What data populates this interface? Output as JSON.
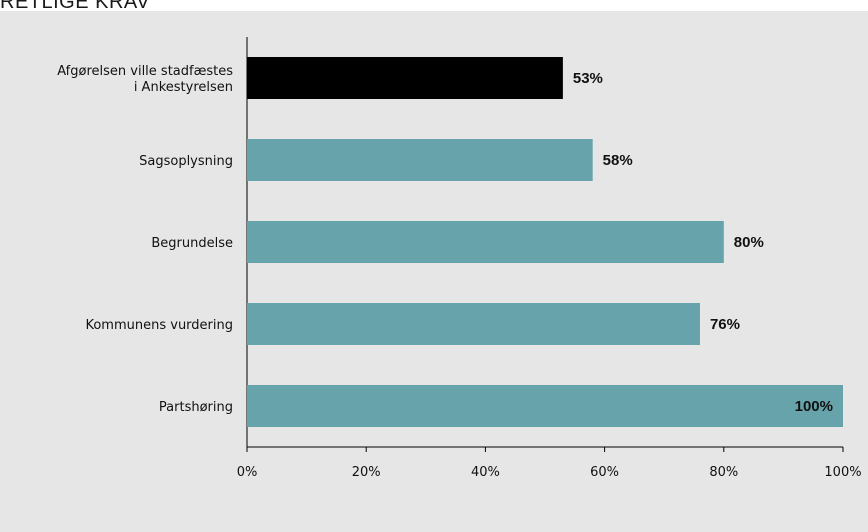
{
  "page": {
    "title_fragment": "RETLIGE KRAV"
  },
  "chart_data": {
    "type": "bar",
    "orientation": "horizontal",
    "categories": [
      "Afgørelsen ville stadfæstes i Ankestyrelsen",
      "Sagsoplysning",
      "Begrundelse",
      "Kommunens vurdering",
      "Partshøring"
    ],
    "category_lines": [
      [
        "Afgørelsen ville stadfæstes",
        "i Ankestyrelsen"
      ],
      [
        "Sagsoplysning"
      ],
      [
        "Begrundelse"
      ],
      [
        "Kommunens vurdering"
      ],
      [
        "Partshøring"
      ]
    ],
    "values": [
      53,
      58,
      80,
      76,
      100
    ],
    "value_labels": [
      "53%",
      "58%",
      "80%",
      "76%",
      "100%"
    ],
    "bar_colors": [
      "#000000",
      "#66a3aa",
      "#66a3aa",
      "#66a3aa",
      "#66a3aa"
    ],
    "xlim": [
      0,
      100
    ],
    "xticks": [
      0,
      20,
      40,
      60,
      80,
      100
    ],
    "xtick_labels": [
      "0%",
      "20%",
      "40%",
      "60%",
      "80%",
      "100%"
    ],
    "grid": false,
    "legend": "none",
    "background": "#e6e6e6"
  }
}
